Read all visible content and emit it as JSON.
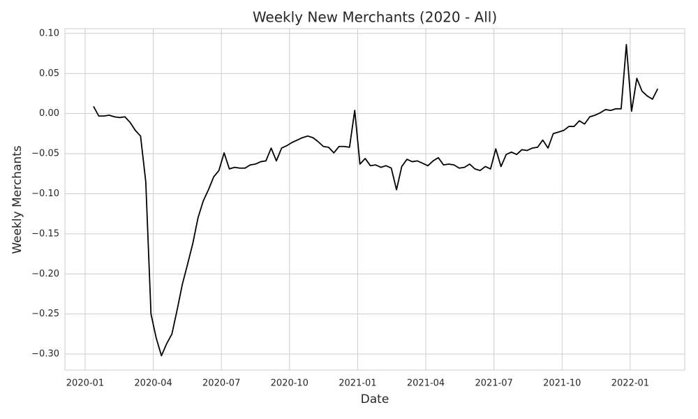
{
  "chart_data": {
    "type": "line",
    "title": "Weekly New Merchants (2020 - All)",
    "xlabel": "Date",
    "ylabel": "Weekly Merchants",
    "x": [
      0.37,
      0.6,
      0.83,
      1.06,
      1.29,
      1.52,
      1.75,
      1.98,
      2.21,
      2.44,
      2.67,
      2.9,
      3.13,
      3.36,
      3.59,
      3.82,
      4.05,
      4.28,
      4.51,
      4.74,
      4.97,
      5.2,
      5.43,
      5.66,
      5.89,
      6.12,
      6.35,
      6.58,
      6.81,
      7.04,
      7.27,
      7.5,
      7.73,
      7.96,
      8.19,
      8.42,
      8.65,
      8.88,
      9.11,
      9.34,
      9.57,
      9.8,
      10.03,
      10.26,
      10.49,
      10.72,
      10.95,
      11.18,
      11.41,
      11.64,
      11.87,
      12.1,
      12.33,
      12.56,
      12.79,
      13.02,
      13.25,
      13.48,
      13.71,
      13.94,
      14.17,
      14.4,
      14.63,
      14.86,
      15.09,
      15.32,
      15.55,
      15.78,
      16.01,
      16.24,
      16.47,
      16.7,
      16.93,
      17.16,
      17.39,
      17.62,
      17.85,
      18.08,
      18.31,
      18.54,
      18.77,
      19.0,
      19.23,
      19.46,
      19.69,
      19.92,
      20.15,
      20.38,
      20.61,
      20.84,
      21.07,
      21.3,
      21.53,
      21.76,
      21.99,
      22.22,
      22.45,
      22.68,
      22.91,
      23.14,
      23.37,
      23.6,
      23.83,
      24.06,
      24.29,
      24.52,
      24.75,
      24.98,
      25.21
    ],
    "series": [
      {
        "color": "#000000",
        "values": [
          0.009,
          -0.003,
          -0.003,
          -0.002,
          -0.004,
          -0.005,
          -0.004,
          -0.011,
          -0.021,
          -0.028,
          -0.085,
          -0.25,
          -0.28,
          -0.302,
          -0.287,
          -0.275,
          -0.245,
          -0.213,
          -0.188,
          -0.162,
          -0.13,
          -0.109,
          -0.095,
          -0.079,
          -0.071,
          -0.049,
          -0.069,
          -0.067,
          -0.068,
          -0.068,
          -0.064,
          -0.063,
          -0.06,
          -0.059,
          -0.043,
          -0.059,
          -0.043,
          -0.04,
          -0.036,
          -0.033,
          -0.03,
          -0.028,
          -0.03,
          -0.035,
          -0.041,
          -0.042,
          -0.049,
          -0.041,
          -0.041,
          -0.042,
          0.004,
          -0.063,
          -0.056,
          -0.065,
          -0.064,
          -0.067,
          -0.065,
          -0.068,
          -0.095,
          -0.066,
          -0.057,
          -0.06,
          -0.059,
          -0.062,
          -0.065,
          -0.059,
          -0.055,
          -0.064,
          -0.063,
          -0.064,
          -0.068,
          -0.067,
          -0.063,
          -0.069,
          -0.071,
          -0.066,
          -0.069,
          -0.044,
          -0.066,
          -0.051,
          -0.048,
          -0.051,
          -0.045,
          -0.046,
          -0.043,
          -0.042,
          -0.033,
          -0.043,
          -0.025,
          -0.023,
          -0.021,
          -0.016,
          -0.016,
          -0.009,
          -0.013,
          -0.004,
          -0.002,
          0.001,
          0.005,
          0.004,
          0.006,
          0.006,
          0.086,
          0.003,
          0.044,
          0.028,
          0.022,
          0.018,
          0.031
        ]
      }
    ],
    "xlim": [
      -0.89,
      26.4
    ],
    "ylim": [
      -0.32,
      0.106
    ],
    "xticks": [
      {
        "value": 0,
        "label": "2020-01"
      },
      {
        "value": 3,
        "label": "2020-04"
      },
      {
        "value": 6,
        "label": "2020-07"
      },
      {
        "value": 9,
        "label": "2020-10"
      },
      {
        "value": 12,
        "label": "2021-01"
      },
      {
        "value": 15,
        "label": "2021-04"
      },
      {
        "value": 18,
        "label": "2021-07"
      },
      {
        "value": 21,
        "label": "2021-10"
      },
      {
        "value": 24,
        "label": "2022-01"
      }
    ],
    "yticks": [
      {
        "value": 0.1,
        "label": "0.10"
      },
      0.05,
      {
        "value": 0,
        "label": "0.00"
      },
      {
        "value": -0.05,
        "label": "−0.05"
      },
      {
        "value": -0.1,
        "label": "−0.10"
      },
      {
        "value": -0.15,
        "label": "−0.15"
      },
      {
        "value": -0.2,
        "label": "−0.20"
      },
      {
        "value": -0.25,
        "label": "−0.25"
      },
      {
        "value": -0.3,
        "label": "−0.30"
      }
    ],
    "grid": true
  }
}
